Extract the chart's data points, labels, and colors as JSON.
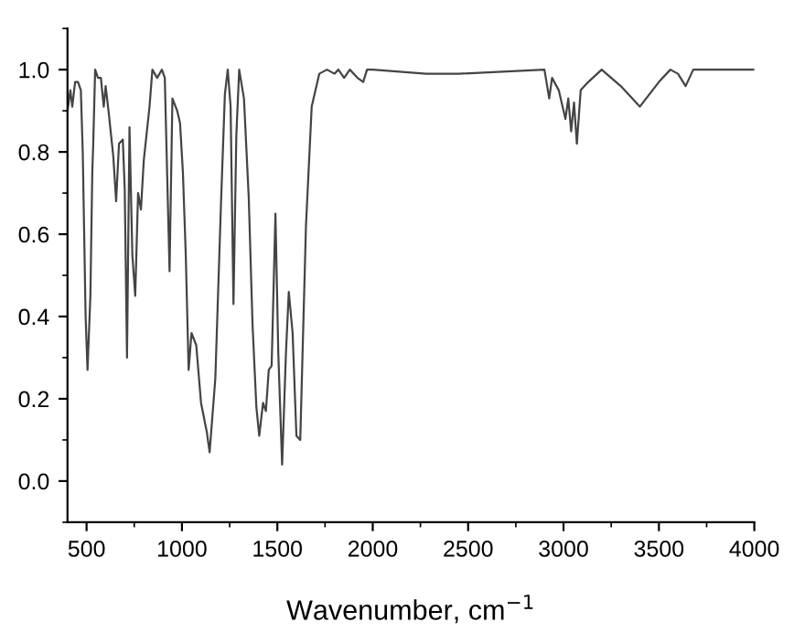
{
  "chart_data": {
    "type": "line",
    "xlabel": "Wavenumber, cm$^{−1}$",
    "xlim": [
      400,
      4000
    ],
    "xticks": [
      500,
      1000,
      1500,
      2000,
      2500,
      3000,
      3500,
      4000
    ],
    "ylim": [
      -0.1,
      1.1
    ],
    "yticks": [
      {
        "value": 0.0,
        "label": "0.0"
      },
      {
        "value": 0.2,
        "label": "0.2"
      },
      {
        "value": 0.4,
        "label": "0.4"
      },
      {
        "value": 0.6,
        "label": "0.6"
      },
      {
        "value": 0.8,
        "label": "0.8"
      },
      {
        "value": 1.0,
        "label": "1.0"
      }
    ],
    "grid": false,
    "legend": false,
    "marker": "none",
    "line_style": "solid",
    "series": [
      {
        "color": "#444444",
        "x": [
          400,
          415,
          425,
          440,
          455,
          470,
          480,
          495,
          505,
          520,
          530,
          535,
          545,
          560,
          575,
          590,
          600,
          615,
          640,
          655,
          670,
          690,
          700,
          712,
          725,
          740,
          755,
          770,
          785,
          800,
          830,
          845,
          870,
          895,
          910,
          935,
          950,
          975,
          990,
          1005,
          1020,
          1035,
          1050,
          1075,
          1100,
          1130,
          1145,
          1175,
          1205,
          1225,
          1240,
          1255,
          1270,
          1285,
          1300,
          1325,
          1350,
          1370,
          1390,
          1405,
          1425,
          1440,
          1455,
          1470,
          1490,
          1505,
          1525,
          1545,
          1560,
          1580,
          1600,
          1620,
          1650,
          1680,
          1720,
          1760,
          1800,
          1820,
          1850,
          1880,
          1920,
          1950,
          1970,
          2000,
          2280,
          2450,
          2900,
          2925,
          2940,
          2975,
          3010,
          3025,
          3040,
          3055,
          3070,
          3090,
          3130,
          3200,
          3300,
          3400,
          3500,
          3560,
          3600,
          3640,
          3680,
          4000
        ],
        "values": [
          0.9,
          0.95,
          0.91,
          0.97,
          0.97,
          0.95,
          0.8,
          0.4,
          0.27,
          0.45,
          0.75,
          0.82,
          1.0,
          0.98,
          0.98,
          0.91,
          0.96,
          0.9,
          0.79,
          0.68,
          0.82,
          0.83,
          0.71,
          0.3,
          0.86,
          0.55,
          0.45,
          0.7,
          0.66,
          0.78,
          0.91,
          1.0,
          0.98,
          1.0,
          0.98,
          0.51,
          0.93,
          0.9,
          0.87,
          0.75,
          0.55,
          0.27,
          0.36,
          0.33,
          0.19,
          0.12,
          0.07,
          0.25,
          0.68,
          0.94,
          1.0,
          0.91,
          0.43,
          0.84,
          1.0,
          0.93,
          0.69,
          0.38,
          0.18,
          0.11,
          0.19,
          0.17,
          0.27,
          0.28,
          0.65,
          0.31,
          0.04,
          0.31,
          0.46,
          0.36,
          0.11,
          0.1,
          0.62,
          0.91,
          0.99,
          1.0,
          0.99,
          1.0,
          0.98,
          1.0,
          0.98,
          0.97,
          1.0,
          1.0,
          0.99,
          0.99,
          1.0,
          0.93,
          0.98,
          0.95,
          0.88,
          0.93,
          0.85,
          0.92,
          0.82,
          0.95,
          0.97,
          1.0,
          0.96,
          0.91,
          0.97,
          1.0,
          0.99,
          0.96,
          1.0,
          1.0
        ]
      }
    ]
  }
}
